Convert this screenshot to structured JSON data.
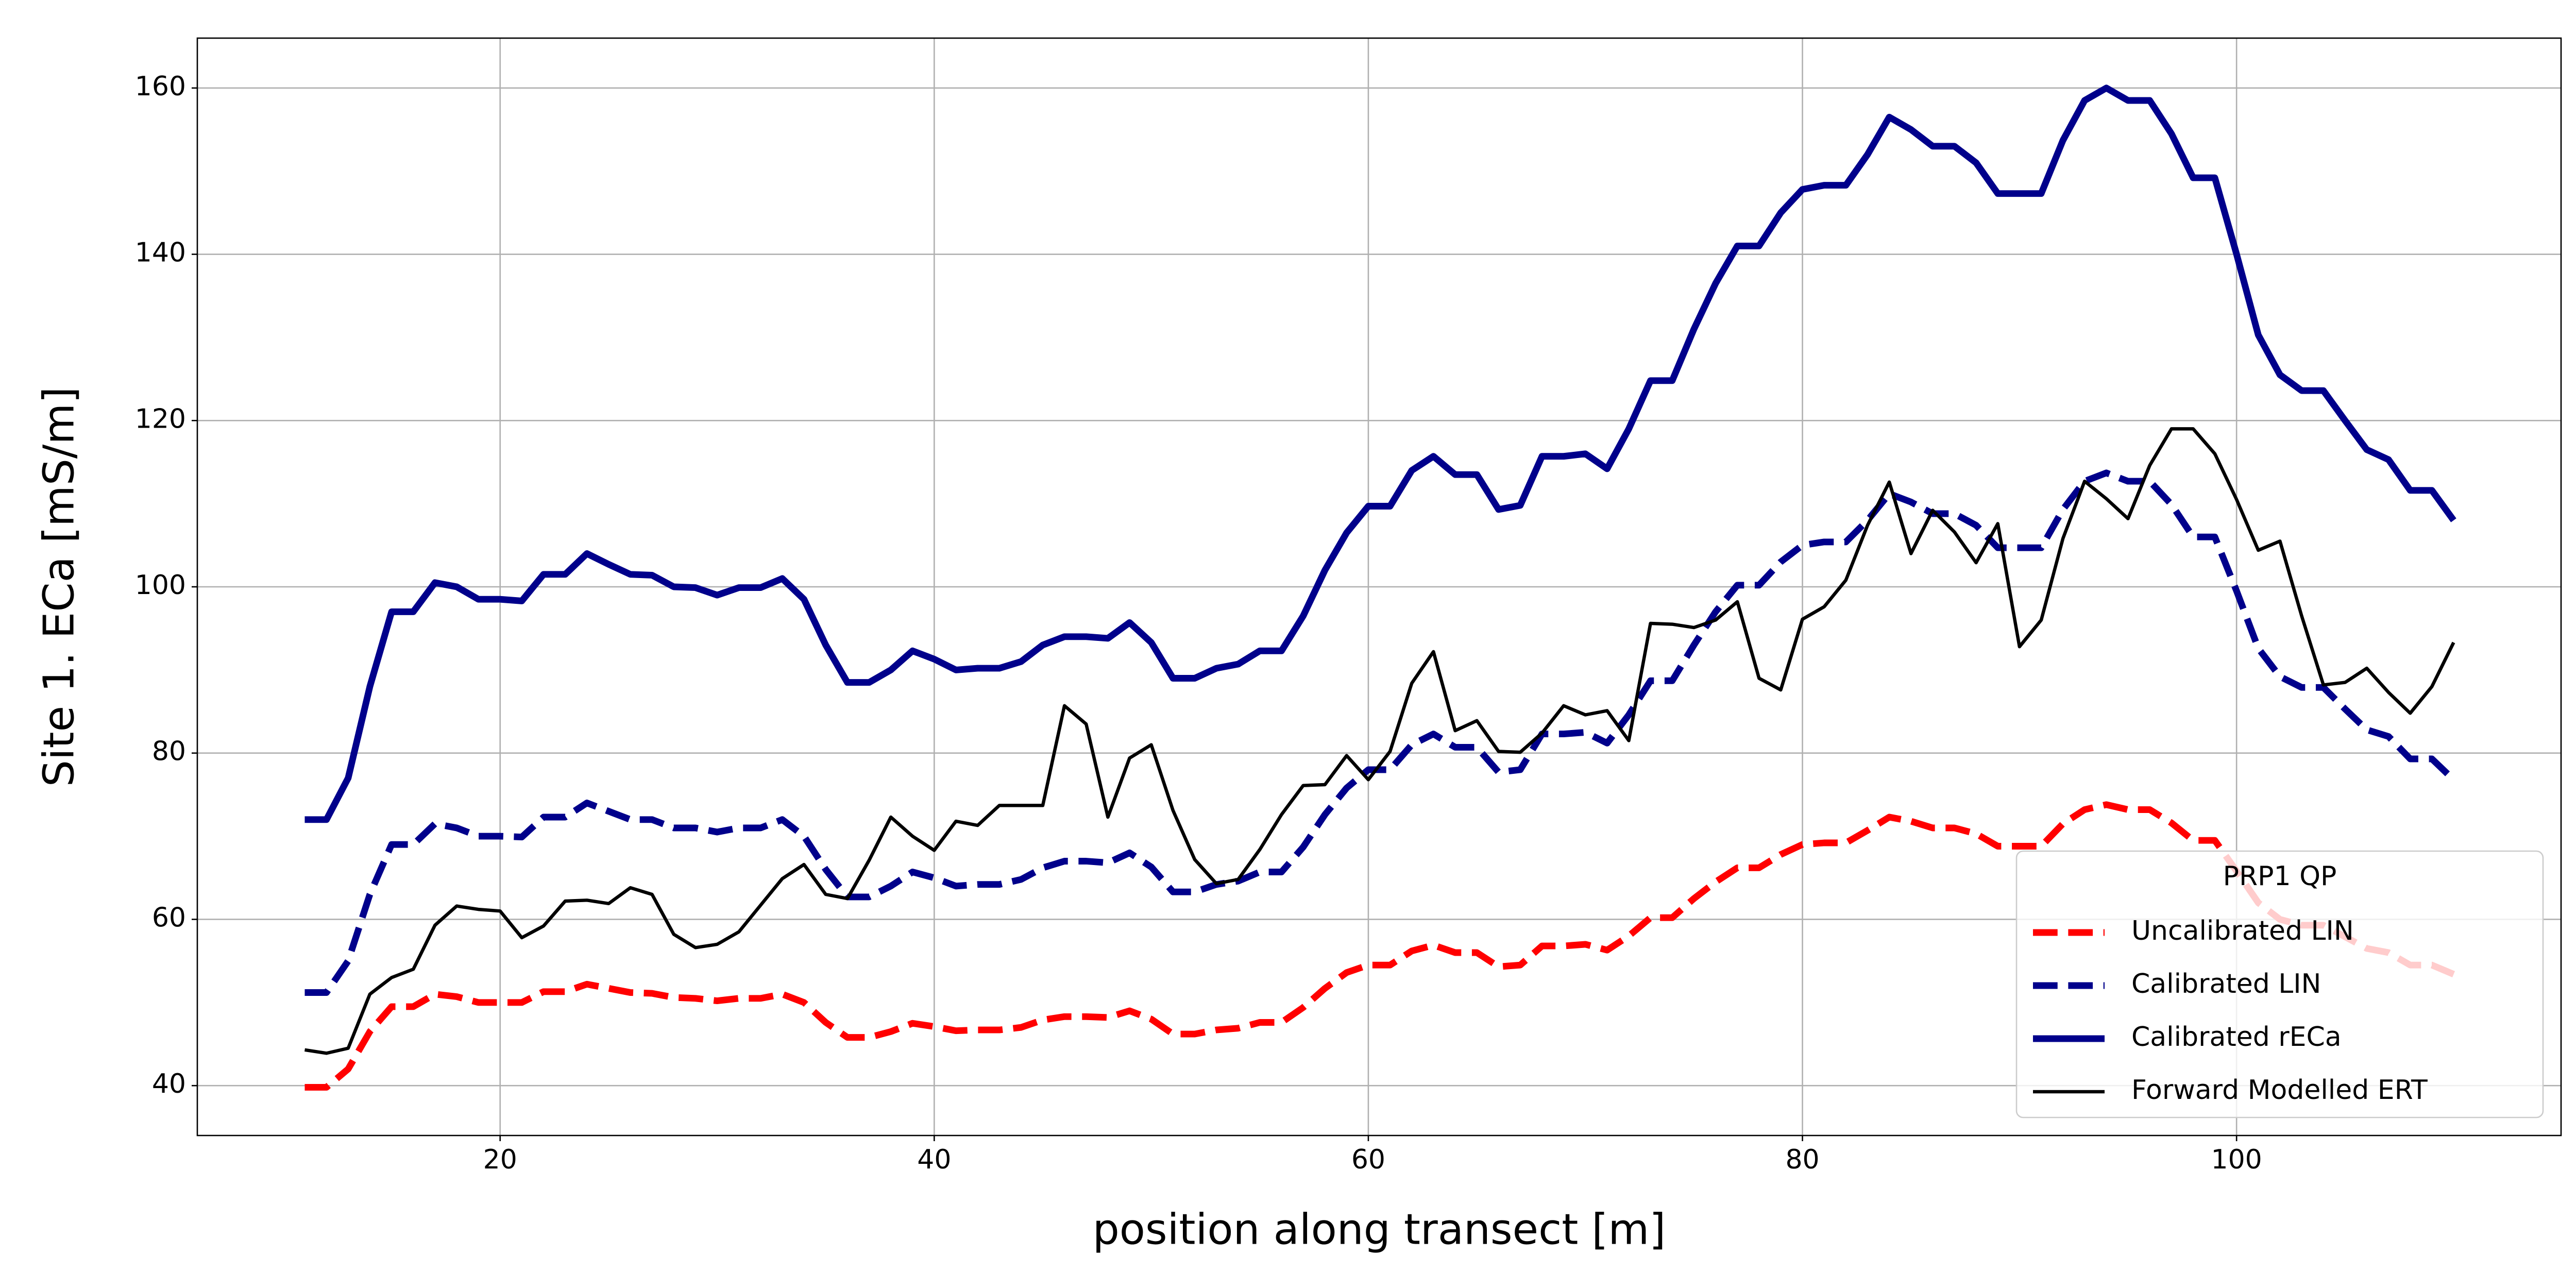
{
  "chart_data": {
    "type": "line",
    "xlabel": "position along transect [m]",
    "ylabel": "Site 1. ECa [mS/m]",
    "legend_title": "PRP1 QP",
    "legend_loc": "lower right",
    "grid": true,
    "xlim": [
      6.05,
      114.95
    ],
    "ylim": [
      34,
      166
    ],
    "xticks": [
      20,
      40,
      60,
      80,
      100
    ],
    "yticks": [
      40,
      60,
      80,
      100,
      120,
      140,
      160
    ],
    "x": [
      11,
      12,
      13,
      14,
      15,
      16,
      17,
      18,
      19,
      20,
      21,
      22,
      23,
      24,
      25,
      26,
      27,
      28,
      29,
      30,
      31,
      32,
      33,
      34,
      35,
      36,
      37,
      38,
      39,
      40,
      41,
      42,
      43,
      44,
      45,
      46,
      47,
      48,
      49,
      50,
      51,
      52,
      53,
      54,
      55,
      56,
      57,
      58,
      59,
      60,
      61,
      62,
      63,
      64,
      65,
      66,
      67,
      68,
      69,
      70,
      71,
      72,
      73,
      74,
      75,
      76,
      77,
      78,
      79,
      80,
      81,
      82,
      83,
      84,
      85,
      86,
      87,
      88,
      89,
      90,
      91,
      92,
      93,
      94,
      95,
      96,
      97,
      98,
      99,
      100,
      101,
      102,
      103,
      104,
      105,
      106,
      107,
      108,
      109,
      110
    ],
    "series": [
      {
        "name": "Uncalibrated LIN",
        "color": "#ff0000",
        "linestyle": "dashed",
        "linewidth": 3,
        "values": [
          39.8,
          39.8,
          42,
          46.5,
          49.5,
          49.5,
          51,
          50.7,
          50,
          50,
          50,
          51.3,
          51.3,
          52.2,
          51.7,
          51.2,
          51.1,
          50.6,
          50.5,
          50.2,
          50.5,
          50.5,
          51,
          50,
          47.6,
          45.8,
          45.8,
          46.5,
          47.5,
          47.1,
          46.6,
          46.7,
          46.7,
          47,
          47.9,
          48.3,
          48.3,
          48.2,
          49,
          48,
          46.2,
          46.2,
          46.7,
          46.9,
          47.6,
          47.6,
          49.4,
          51.7,
          53.6,
          54.5,
          54.5,
          56.2,
          56.9,
          56,
          56,
          54.3,
          54.5,
          56.8,
          56.8,
          57,
          56.3,
          58,
          60.2,
          60.2,
          62.5,
          64.5,
          66.2,
          66.2,
          67.8,
          69,
          69.2,
          69.2,
          70.7,
          72.3,
          71.8,
          71,
          71,
          70.3,
          68.8,
          68.8,
          68.8,
          71.5,
          73.2,
          73.8,
          73.2,
          73.2,
          71.6,
          69.5,
          69.5,
          65.8,
          62,
          60,
          59.3,
          59.3,
          57.9,
          56.5,
          56,
          54.5,
          54.5,
          53.4
        ]
      },
      {
        "name": "Calibrated LIN",
        "color": "#00008b",
        "linestyle": "dashed",
        "linewidth": 3,
        "values": [
          51.2,
          51.2,
          55,
          63,
          69,
          69,
          71.5,
          71,
          70,
          70,
          69.9,
          72.3,
          72.3,
          74,
          73,
          72,
          72,
          71,
          71,
          70.5,
          71,
          71,
          72,
          70,
          66,
          62.7,
          62.7,
          64,
          65.7,
          65,
          64,
          64.2,
          64.2,
          64.8,
          66.2,
          67,
          67,
          66.8,
          68,
          66.3,
          63.3,
          63.3,
          64.2,
          64.6,
          65.7,
          65.7,
          68.7,
          72.6,
          75.8,
          78,
          78,
          81,
          82.3,
          80.7,
          80.7,
          77.7,
          78,
          82.3,
          82.3,
          82.5,
          81.2,
          84.6,
          88.7,
          88.7,
          93,
          97,
          100.2,
          100.2,
          103,
          105,
          105.4,
          105.4,
          108,
          111.2,
          110.2,
          108.8,
          108.8,
          107.4,
          104.7,
          104.7,
          104.7,
          109.3,
          112.7,
          113.7,
          112.7,
          112.7,
          109.9,
          106,
          106,
          99.5,
          92.6,
          89.2,
          87.9,
          87.9,
          85.3,
          82.8,
          82,
          79.3,
          79.3,
          76.8
        ]
      },
      {
        "name": "Calibrated rECa",
        "color": "#00008b",
        "linestyle": "solid",
        "linewidth": 3,
        "values": [
          72,
          72,
          77,
          88,
          97,
          97,
          100.5,
          100,
          98.5,
          98.5,
          98.3,
          101.5,
          101.5,
          104,
          102.7,
          101.5,
          101.4,
          100,
          99.9,
          99,
          99.9,
          99.9,
          101,
          98.5,
          93,
          88.5,
          88.5,
          90,
          92.3,
          91.3,
          90,
          90.2,
          90.2,
          91,
          93,
          94,
          94,
          93.8,
          95.7,
          93.3,
          89,
          89,
          90.2,
          90.7,
          92.3,
          92.3,
          96.5,
          102,
          106.5,
          109.7,
          109.7,
          114,
          115.7,
          113.5,
          113.5,
          109.3,
          109.8,
          115.7,
          115.7,
          116,
          114.2,
          119,
          124.8,
          124.8,
          131,
          136.5,
          141,
          141,
          145,
          147.8,
          148.3,
          148.3,
          152,
          156.5,
          155,
          153,
          153,
          151,
          147.3,
          147.3,
          147.3,
          153.7,
          158.5,
          160,
          158.5,
          158.5,
          154.5,
          149.2,
          149.2,
          140,
          130.3,
          125.5,
          123.6,
          123.6,
          120,
          116.5,
          115.3,
          111.6,
          111.6,
          108
        ]
      },
      {
        "name": "Forward Modelled ERT",
        "color": "#000000",
        "linestyle": "solid",
        "linewidth": 1.5,
        "values": [
          44.3,
          43.9,
          44.5,
          51,
          53,
          54,
          59.3,
          61.6,
          61.2,
          61,
          57.8,
          59.2,
          62.2,
          62.3,
          61.9,
          63.8,
          63,
          58.2,
          56.6,
          57,
          58.5,
          61.7,
          64.9,
          66.6,
          63,
          62.5,
          67.1,
          72.3,
          70,
          68.3,
          71.8,
          71.3,
          73.7,
          73.7,
          73.7,
          85.7,
          83.5,
          72.3,
          79.4,
          81,
          73.1,
          67.2,
          64.3,
          64.8,
          68.4,
          72.6,
          76.1,
          76.2,
          79.7,
          76.8,
          80.2,
          88.4,
          92.2,
          82.7,
          83.9,
          80.2,
          80.1,
          82.4,
          85.7,
          84.6,
          85.1,
          81.5,
          95.6,
          95.5,
          95.1,
          96,
          98.2,
          89,
          87.6,
          96.1,
          97.6,
          100.8,
          107.4,
          112.6,
          104,
          109.2,
          106.6,
          102.9,
          107.6,
          92.8,
          96,
          105.8,
          112.7,
          110.6,
          108.2,
          114.6,
          119,
          119,
          116,
          110.5,
          104.4,
          105.5,
          96.5,
          88.2,
          88.5,
          90.2,
          87.3,
          84.8,
          88,
          93.3
        ]
      }
    ]
  }
}
